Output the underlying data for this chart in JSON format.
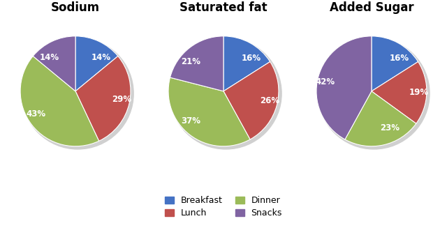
{
  "charts": [
    {
      "title": "Sodium",
      "values": [
        14,
        29,
        43,
        14
      ],
      "labels": [
        "14%",
        "29%",
        "43%",
        "14%"
      ],
      "startangle": 90
    },
    {
      "title": "Saturated fat",
      "values": [
        16,
        26,
        37,
        21
      ],
      "labels": [
        "16%",
        "26%",
        "37%",
        "21%"
      ],
      "startangle": 90
    },
    {
      "title": "Added Sugar",
      "values": [
        16,
        19,
        23,
        42
      ],
      "labels": [
        "16%",
        "19%",
        "23%",
        "42%"
      ],
      "startangle": 90
    }
  ],
  "colors": [
    "#4472C4",
    "#C0504D",
    "#9BBB59",
    "#8064A2"
  ],
  "legend_labels": [
    "Breakfast",
    "Lunch",
    "Dinner",
    "Snacks"
  ],
  "label_color": "white",
  "label_fontsize": 8.5,
  "title_fontsize": 12,
  "title_fontweight": "bold"
}
